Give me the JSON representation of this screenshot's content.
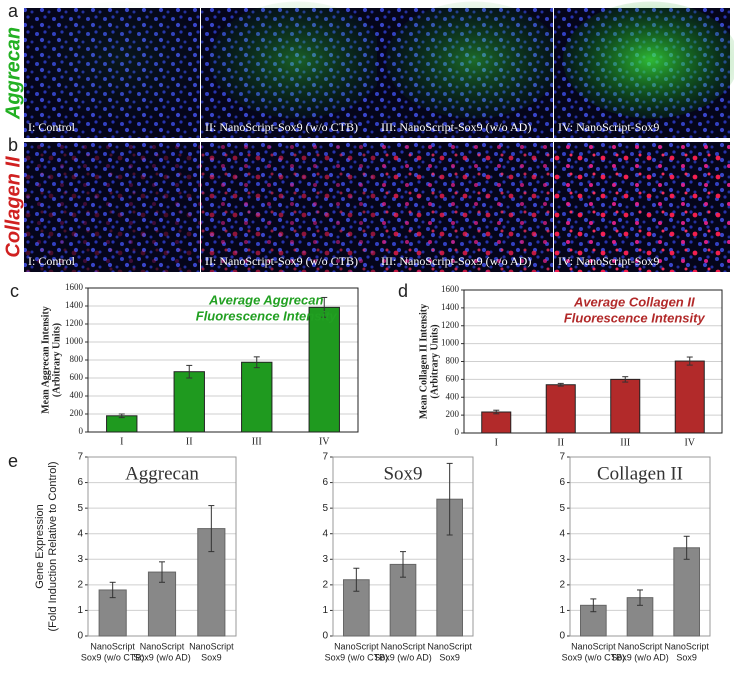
{
  "panels": {
    "letters": [
      "a",
      "b",
      "c",
      "d",
      "e"
    ],
    "row_labels": [
      "Aggrecan",
      "Collagen II"
    ],
    "image_labels": [
      [
        "I: Control",
        "II: NanoScript-Sox9 (w/o CTB)",
        "III: NanoScript-Sox9 (w/o AD)",
        "IV: NanoScript-Sox9"
      ],
      [
        "I: Control",
        "II: NanoScript-Sox9 (w/o CTB)",
        "III: NanoScript-Sox9 (w/o AD)",
        "IV: NanoScript-Sox9"
      ]
    ]
  },
  "chart_data": [
    {
      "type": "bar",
      "title": [
        "Average Aggrecan",
        "Fluorescence Intensity"
      ],
      "title_color": "#22a022",
      "y_label": [
        "Mean Aggrecan Intensity",
        "(Arbitrary Units)"
      ],
      "categories": [
        "I",
        "II",
        "III",
        "IV"
      ],
      "values": [
        180,
        670,
        775,
        1385
      ],
      "errors": [
        20,
        70,
        60,
        110
      ],
      "color": "#1f9a1f",
      "ylim": [
        0,
        1600
      ],
      "yticks": [
        0,
        200,
        400,
        600,
        800,
        1000,
        1200,
        1400,
        1600
      ],
      "grid": true
    },
    {
      "type": "bar",
      "title": [
        "Average Collagen II",
        "Fluorescence Intensity"
      ],
      "title_color": "#b22a2a",
      "y_label": [
        "Mean Collagen II Intensity",
        "(Arbitrary Units)"
      ],
      "categories": [
        "I",
        "II",
        "III",
        "IV"
      ],
      "values": [
        235,
        540,
        600,
        805
      ],
      "errors": [
        20,
        15,
        30,
        45
      ],
      "color": "#b22a2a",
      "ylim": [
        0,
        1600
      ],
      "yticks": [
        0,
        200,
        400,
        600,
        800,
        1000,
        1200,
        1400,
        1600
      ],
      "grid": true
    },
    {
      "type": "bar",
      "title": [
        "Aggrecan"
      ],
      "title_color": "#333333",
      "y_label": [
        "Gene Expression",
        "(Fold Induction Relative to Control)"
      ],
      "categories": [
        [
          "NanoScript",
          "Sox9 (w/o CTB)"
        ],
        [
          "NanoScript",
          "Sox9 (w/o AD)"
        ],
        [
          "NanoScript",
          "Sox9"
        ]
      ],
      "values": [
        1.8,
        2.5,
        4.2
      ],
      "errors": [
        0.3,
        0.4,
        0.9
      ],
      "color": "#888888",
      "ylim": [
        0,
        7
      ],
      "yticks": [
        0,
        1,
        2,
        3,
        4,
        5,
        6,
        7
      ],
      "grid": true
    },
    {
      "type": "bar",
      "title": [
        "Sox9"
      ],
      "title_color": "#333333",
      "categories": [
        [
          "NanoScript",
          "Sox9 (w/o CTB)"
        ],
        [
          "NanoScript",
          "Sox9 (w/o AD)"
        ],
        [
          "NanoScript",
          "Sox9"
        ]
      ],
      "values": [
        2.2,
        2.8,
        5.35
      ],
      "errors": [
        0.45,
        0.5,
        1.4
      ],
      "color": "#888888",
      "ylim": [
        0,
        7
      ],
      "yticks": [
        0,
        1,
        2,
        3,
        4,
        5,
        6,
        7
      ],
      "grid": true
    },
    {
      "type": "bar",
      "title": [
        "Collagen II"
      ],
      "title_color": "#333333",
      "categories": [
        [
          "NanoScript",
          "Sox9 (w/o CTB)"
        ],
        [
          "NanoScript",
          "Sox9 (w/o AD)"
        ],
        [
          "NanoScript",
          "Sox9"
        ]
      ],
      "values": [
        1.2,
        1.5,
        3.45
      ],
      "errors": [
        0.25,
        0.3,
        0.45
      ],
      "color": "#888888",
      "ylim": [
        0,
        7
      ],
      "yticks": [
        0,
        1,
        2,
        3,
        4,
        5,
        6,
        7
      ],
      "grid": true
    }
  ]
}
